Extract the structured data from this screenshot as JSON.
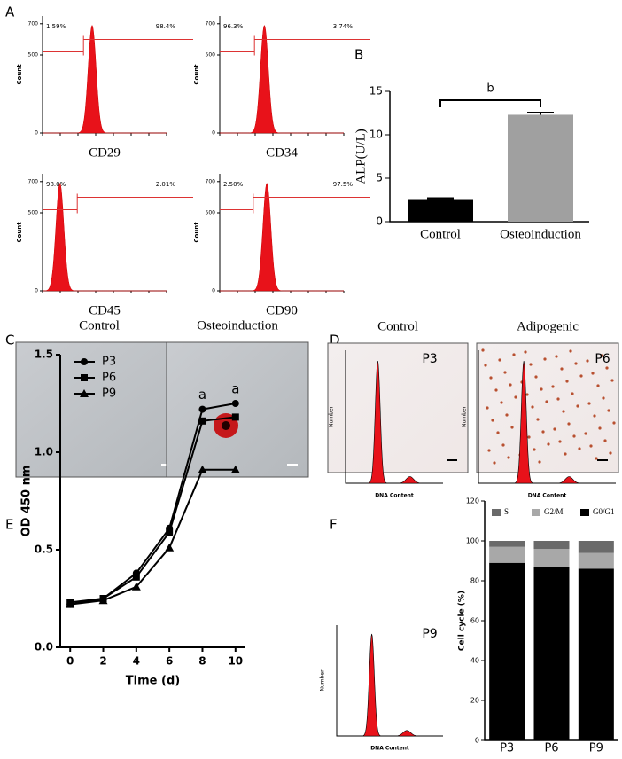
{
  "panel_labels": [
    "A",
    "B",
    "C",
    "D",
    "E",
    "F"
  ],
  "flow": {
    "y_label": "Count",
    "yticks": [
      0,
      500,
      700
    ],
    "plots": [
      {
        "marker": "CD29",
        "left": "1.59%",
        "right": "98.4%"
      },
      {
        "marker": "CD34",
        "left": "96.3%",
        "right": "3.74%"
      },
      {
        "marker": "CD45",
        "left": "98.0%",
        "right": "2.01%"
      },
      {
        "marker": "CD90",
        "left": "2.50%",
        "right": "97.5%"
      }
    ]
  },
  "images": {
    "C": [
      "Control",
      "Osteoinduction"
    ],
    "D": [
      "Control",
      "Adipogenic"
    ]
  },
  "dna": {
    "x_label": "DNA Content",
    "y_label": "Number",
    "plots": [
      "P3",
      "P6",
      "P9"
    ]
  },
  "chart_data": [
    {
      "type": "bar",
      "y_label": "ALP(U/L)",
      "categories": [
        "Control",
        "Osteoinduction"
      ],
      "values": [
        2.6,
        12.3
      ],
      "errors": [
        0.1,
        0.25
      ],
      "colors": [
        "#000000",
        "#a0a0a0"
      ],
      "ylim": [
        0,
        15
      ],
      "yticks": [
        0,
        5,
        10,
        15
      ],
      "annotation": "b"
    },
    {
      "type": "line",
      "x_label": "Time (d)",
      "y_label": "OD 450 nm",
      "x": [
        0,
        2,
        4,
        6,
        8,
        10
      ],
      "xlim": [
        -0.6,
        10.6
      ],
      "xticks": [
        0,
        2,
        4,
        6,
        8,
        10
      ],
      "ylim": [
        0,
        1.5
      ],
      "yticks": [
        {
          "value": 0,
          "label": "0.0"
        },
        0.5,
        {
          "value": 1,
          "label": "1.0"
        },
        1.5
      ],
      "legend": "upper left",
      "series": [
        {
          "name": "P3",
          "color": "#000000",
          "marker": "circle",
          "values": [
            0.22,
            0.25,
            0.38,
            0.61,
            1.22,
            1.25
          ]
        },
        {
          "name": "P6",
          "color": "#000000",
          "marker": "square",
          "values": [
            0.23,
            0.25,
            0.36,
            0.59,
            1.16,
            1.18
          ]
        },
        {
          "name": "P9",
          "color": "#000000",
          "marker": "triangle",
          "values": [
            0.22,
            0.24,
            0.31,
            0.51,
            0.91,
            0.91
          ]
        }
      ],
      "annotations": [
        {
          "text": "a",
          "x": 8
        },
        {
          "text": "a",
          "x": 10
        }
      ]
    },
    {
      "type": "stacked_bar",
      "y_label": "Cell cycle (%)",
      "categories": [
        "P3",
        "P6",
        "P9"
      ],
      "ylim": [
        0,
        120
      ],
      "yticks": [
        0,
        20,
        40,
        60,
        80,
        100,
        120
      ],
      "series": [
        {
          "name": "G0/G1",
          "color": "#000000",
          "values": [
            89,
            87,
            86
          ]
        },
        {
          "name": "G2/M",
          "color": "#a8a8a8",
          "values": [
            8,
            9,
            8
          ]
        },
        {
          "name": "S",
          "color": "#6a6a6a",
          "values": [
            3,
            4,
            6
          ]
        }
      ]
    }
  ]
}
